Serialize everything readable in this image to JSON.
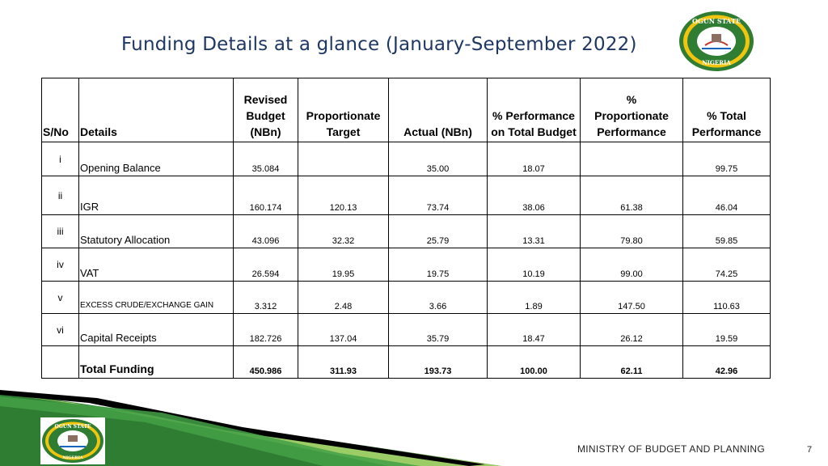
{
  "title": "Funding Details at a glance (January-September 2022)",
  "logo": {
    "text_top": "OGUN STATE",
    "text_bottom": "NIGERIA",
    "colors": {
      "ring_outer": "#2e7d32",
      "ring_inner": "#f1c40f",
      "center": "#ffffff"
    }
  },
  "table": {
    "headers": {
      "sno": "S/No",
      "details": "Details",
      "revised_budget": [
        "Revised",
        "Budget",
        "(NBn)"
      ],
      "proportionate_target": [
        "Proportionate",
        "Target"
      ],
      "actual": "Actual (NBn)",
      "performance_total_budget": [
        "% Performance",
        "on Total Budget"
      ],
      "proportionate_performance": [
        "%",
        "Proportionate",
        "Performance"
      ],
      "total_performance": [
        "% Total",
        "Performance"
      ]
    },
    "rows": [
      {
        "sno": "i",
        "details": "Opening Balance",
        "revised_budget": "35.084",
        "proportionate_target": "",
        "actual": "35.00",
        "performance_total_budget": "18.07",
        "proportionate_performance": "",
        "total_performance": "99.75"
      },
      {
        "sno": "ii",
        "details": "IGR",
        "revised_budget": "160.174",
        "proportionate_target": "120.13",
        "actual": "73.74",
        "performance_total_budget": "38.06",
        "proportionate_performance": "61.38",
        "total_performance": "46.04"
      },
      {
        "sno": "iii",
        "details": "Statutory Allocation",
        "revised_budget": "43.096",
        "proportionate_target": "32.32",
        "actual": "25.79",
        "performance_total_budget": "13.31",
        "proportionate_performance": "79.80",
        "total_performance": "59.85"
      },
      {
        "sno": "iv",
        "details": "VAT",
        "revised_budget": "26.594",
        "proportionate_target": "19.95",
        "actual": "19.75",
        "performance_total_budget": "10.19",
        "proportionate_performance": "99.00",
        "total_performance": "74.25"
      },
      {
        "sno": "v",
        "details": "EXCESS CRUDE/EXCHANGE GAIN",
        "revised_budget": "3.312",
        "proportionate_target": "2.48",
        "actual": "3.66",
        "performance_total_budget": "1.89",
        "proportionate_performance": "147.50",
        "total_performance": "110.63"
      },
      {
        "sno": "vi",
        "details": "Capital Receipts",
        "revised_budget": "182.726",
        "proportionate_target": "137.04",
        "actual": "35.79",
        "performance_total_budget": "18.47",
        "proportionate_performance": "26.12",
        "total_performance": "19.59"
      }
    ],
    "total": {
      "sno": "",
      "details": "Total  Funding",
      "revised_budget": "450.986",
      "proportionate_target": "311.93",
      "actual": "193.73",
      "performance_total_budget": "100.00",
      "proportionate_performance": "62.11",
      "total_performance": "42.96"
    }
  },
  "footer": {
    "ministry": "MINISTRY OF BUDGET AND PLANNING",
    "page_number": "7",
    "colors": {
      "band_dark": "#2e7d32",
      "band_light": "#9ccc65",
      "band_black": "#000000"
    }
  }
}
